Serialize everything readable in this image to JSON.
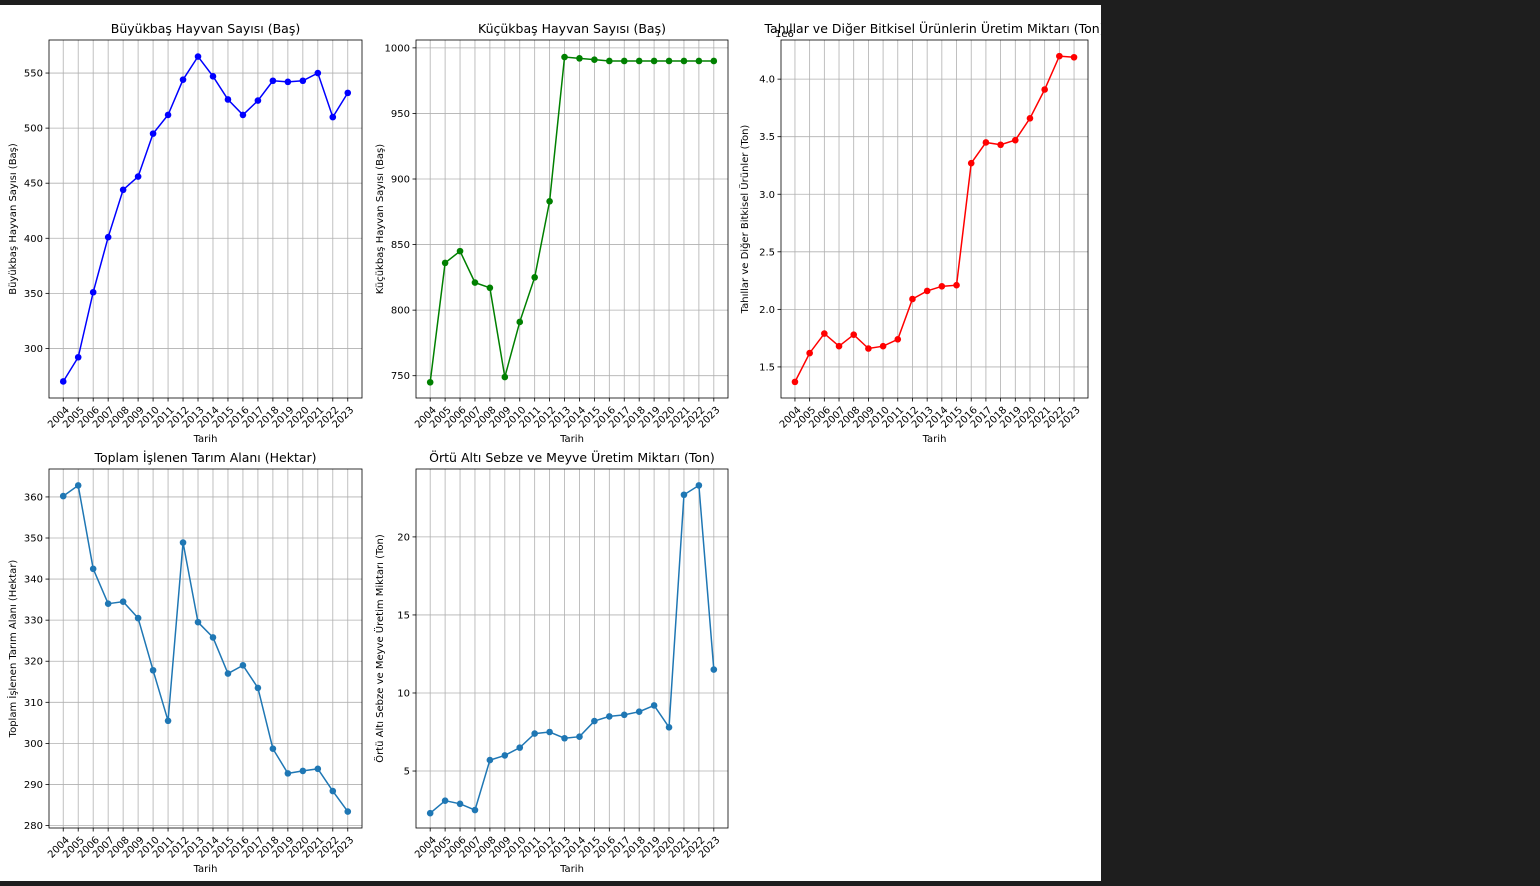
{
  "figure": {
    "background": "#ffffff",
    "page_background": "#1e1e1e"
  },
  "chart_data": [
    {
      "type": "line",
      "title": "Büyükbaş Hayvan Sayısı (Baş)",
      "xlabel": "Tarih",
      "ylabel": "Büyükbaş Hayvan Sayısı (Baş)",
      "x": [
        2004,
        2005,
        2006,
        2007,
        2008,
        2009,
        2010,
        2011,
        2012,
        2013,
        2014,
        2015,
        2016,
        2017,
        2018,
        2019,
        2020,
        2021,
        2022,
        2023
      ],
      "series": [
        {
          "color": "#0000ff",
          "values": [
            270,
            292,
            351,
            401,
            444,
            456,
            495,
            512,
            544,
            565,
            547,
            526,
            512,
            525,
            543,
            542,
            543,
            550,
            510,
            532
          ]
        }
      ],
      "ylim": [
        255,
        580
      ],
      "yticks": [
        300,
        350,
        400,
        450,
        500,
        550
      ],
      "ytick_labels": [
        "300",
        "350",
        "400",
        "450",
        "500",
        "550"
      ],
      "offset_text": "",
      "grid": true,
      "marker": "circle"
    },
    {
      "type": "line",
      "title": "Küçükbaş Hayvan Sayısı (Baş)",
      "xlabel": "Tarih",
      "ylabel": "Küçükbaş Hayvan Sayısı (Baş)",
      "x": [
        2004,
        2005,
        2006,
        2007,
        2008,
        2009,
        2010,
        2011,
        2012,
        2013,
        2014,
        2015,
        2016,
        2017,
        2018,
        2019,
        2020,
        2021,
        2022,
        2023
      ],
      "series": [
        {
          "color": "#008000",
          "values": [
            745,
            836,
            845,
            821,
            817,
            749,
            791,
            825,
            883,
            993,
            992,
            991,
            990,
            990,
            990,
            990,
            990,
            990,
            990,
            990
          ]
        }
      ],
      "ylim": [
        733,
        1006
      ],
      "yticks": [
        750,
        800,
        850,
        900,
        950,
        1000
      ],
      "ytick_labels": [
        "750",
        "800",
        "850",
        "900",
        "950",
        "1000"
      ],
      "offset_text": "",
      "grid": true,
      "marker": "circle"
    },
    {
      "type": "line",
      "title": "Tahıllar ve Diğer Bitkisel Ürünlerin Üretim Miktarı (Ton)",
      "xlabel": "Tarih",
      "ylabel": "Tahıllar ve Diğer Bitkisel Ürünler (Ton)",
      "x": [
        2004,
        2005,
        2006,
        2007,
        2008,
        2009,
        2010,
        2011,
        2012,
        2013,
        2014,
        2015,
        2016,
        2017,
        2018,
        2019,
        2020,
        2021,
        2022,
        2023
      ],
      "series": [
        {
          "color": "#ff0000",
          "values": [
            1370000,
            1620000,
            1790000,
            1680000,
            1780000,
            1660000,
            1680000,
            1740000,
            2090000,
            2160000,
            2200000,
            2210000,
            3270000,
            3450000,
            3430000,
            3470000,
            3660000,
            3910000,
            4200000,
            4190000
          ]
        }
      ],
      "ylim": [
        1230000,
        4340000
      ],
      "yticks": [
        1500000,
        2000000,
        2500000,
        3000000,
        3500000,
        4000000
      ],
      "ytick_labels": [
        "1.5",
        "2.0",
        "2.5",
        "3.0",
        "3.5",
        "4.0"
      ],
      "offset_text": "1e6",
      "grid": true,
      "marker": "circle"
    },
    {
      "type": "line",
      "title": "Toplam İşlenen Tarım Alanı (Hektar)",
      "xlabel": "Tarih",
      "ylabel": "Toplam İşlenen Tarım Alanı (Hektar)",
      "x": [
        2004,
        2005,
        2006,
        2007,
        2008,
        2009,
        2010,
        2011,
        2012,
        2013,
        2014,
        2015,
        2016,
        2017,
        2018,
        2019,
        2020,
        2021,
        2022,
        2023
      ],
      "series": [
        {
          "color": "#1f77b4",
          "values": [
            360.2,
            362.8,
            342.5,
            334.0,
            334.5,
            330.5,
            317.8,
            305.5,
            348.9,
            329.5,
            325.8,
            317.0,
            319.0,
            313.5,
            298.7,
            292.7,
            293.3,
            293.8,
            288.4,
            283.4
          ]
        }
      ],
      "ylim": [
        279.4,
        366.8
      ],
      "yticks": [
        280,
        290,
        300,
        310,
        320,
        330,
        340,
        350,
        360
      ],
      "ytick_labels": [
        "280",
        "290",
        "300",
        "310",
        "320",
        "330",
        "340",
        "350",
        "360"
      ],
      "offset_text": "",
      "grid": true,
      "marker": "circle"
    },
    {
      "type": "line",
      "title": "Örtü Altı Sebze ve Meyve Üretim Miktarı (Ton)",
      "xlabel": "Tarih",
      "ylabel": "Örtü Altı Sebze ve Meyve Üretim Miktarı (Ton)",
      "x": [
        2004,
        2005,
        2006,
        2007,
        2008,
        2009,
        2010,
        2011,
        2012,
        2013,
        2014,
        2015,
        2016,
        2017,
        2018,
        2019,
        2020,
        2021,
        2022,
        2023
      ],
      "series": [
        {
          "color": "#1f77b4",
          "values": [
            2.3,
            3.1,
            2.9,
            2.5,
            5.7,
            6.0,
            6.5,
            7.4,
            7.5,
            7.1,
            7.2,
            8.2,
            8.5,
            8.6,
            8.8,
            9.2,
            7.8,
            22.7,
            23.3,
            11.5
          ]
        }
      ],
      "ylim": [
        1.35,
        24.35
      ],
      "yticks": [
        5,
        10,
        15,
        20
      ],
      "ytick_labels": [
        "5",
        "10",
        "15",
        "20"
      ],
      "offset_text": "",
      "grid": true,
      "marker": "circle"
    }
  ]
}
